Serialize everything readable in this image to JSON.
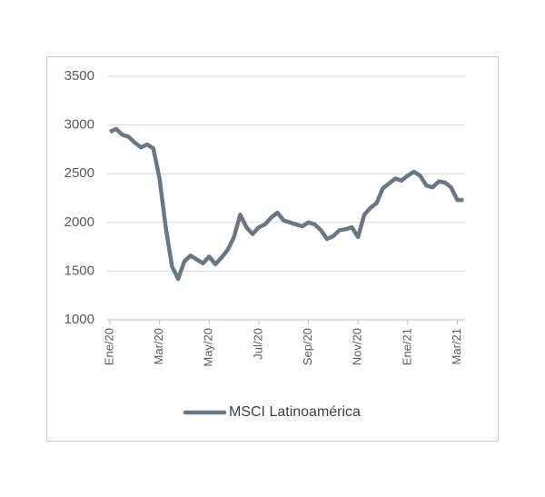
{
  "chart_data": {
    "type": "line",
    "categories": [
      "Ene/20",
      null,
      null,
      null,
      null,
      null,
      null,
      null,
      "Mar/20",
      null,
      null,
      null,
      null,
      null,
      null,
      null,
      "May/20",
      null,
      null,
      null,
      null,
      null,
      null,
      null,
      "Jul/20",
      null,
      null,
      null,
      null,
      null,
      null,
      null,
      "Sep/20",
      null,
      null,
      null,
      null,
      null,
      null,
      null,
      "Nov/20",
      null,
      null,
      null,
      null,
      null,
      null,
      null,
      "Ene/21",
      null,
      null,
      null,
      null,
      null,
      null,
      null,
      "Mar/21",
      null
    ],
    "series": [
      {
        "name": "MSCI Latinoamérica",
        "color": "#6b7884",
        "values": [
          2930,
          2960,
          2900,
          2880,
          2820,
          2770,
          2800,
          2760,
          2450,
          1950,
          1550,
          1420,
          1600,
          1660,
          1620,
          1580,
          1650,
          1570,
          1640,
          1720,
          1850,
          2080,
          1950,
          1880,
          1950,
          1980,
          2050,
          2100,
          2020,
          2000,
          1980,
          1960,
          2000,
          1980,
          1920,
          1830,
          1860,
          1920,
          1930,
          1950,
          1850,
          2080,
          2150,
          2200,
          2350,
          2400,
          2450,
          2430,
          2480,
          2520,
          2480,
          2380,
          2360,
          2420,
          2410,
          2360,
          2230,
          2230
        ]
      }
    ],
    "ylim": [
      1000,
      3500
    ],
    "yticks": [
      1000,
      1500,
      2000,
      2500,
      3000,
      3500
    ],
    "grid": true,
    "legend": "bottom"
  }
}
